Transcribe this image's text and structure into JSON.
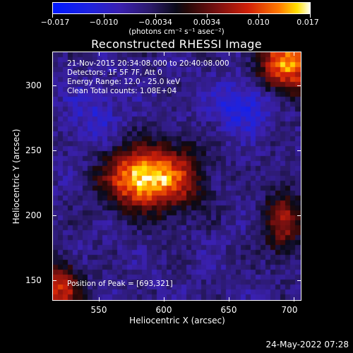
{
  "colorbar": {
    "tick_labels": [
      "−0.017",
      "−0.010",
      "−0.0034",
      "0.0034",
      "0.010",
      "0.017"
    ],
    "units_text": "(photons cm⁻² s⁻¹ asec⁻²)"
  },
  "plot": {
    "title": "Reconstructed RHESSI Image",
    "info_lines": [
      "21-Nov-2015 20:34:08.000 to 20:40:08.000",
      "Detectors: 1F 5F 7F, Att 0",
      "Energy Range: 12.0 - 25.0 keV",
      "Clean     Total counts: 1.08E+04"
    ],
    "peak_text": "Position of Peak = [693,321]",
    "x_axis": {
      "title": "Heliocentric X (arcsec)",
      "ticks": [
        "550",
        "600",
        "650",
        "700"
      ]
    },
    "y_axis": {
      "title": "Heliocentric Y (arcsec)",
      "ticks": [
        "300",
        "250",
        "200",
        "150"
      ]
    }
  },
  "footer": {
    "timestamp": "24-May-2022 07:28"
  },
  "colors": {
    "background": "#000000",
    "axes": "#ffffff"
  }
}
